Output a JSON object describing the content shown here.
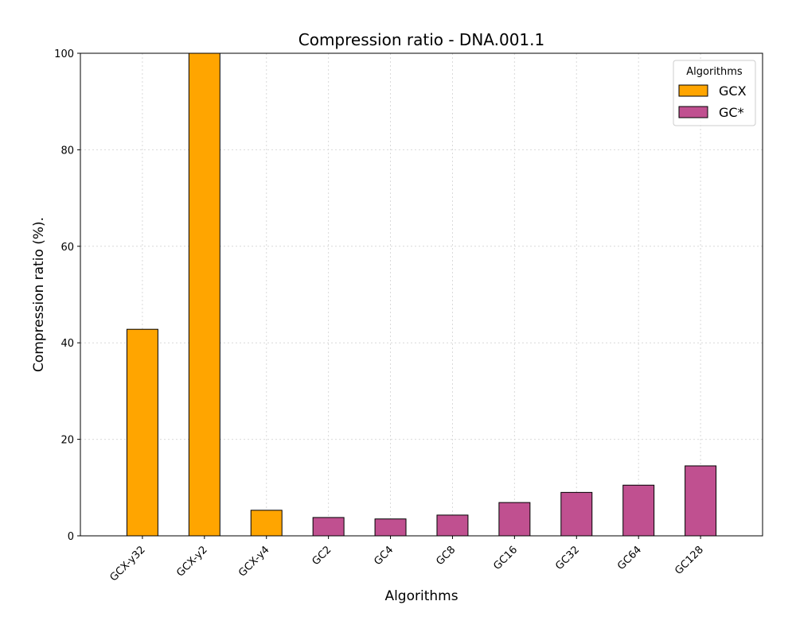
{
  "chart_data": {
    "type": "bar",
    "title": "Compression ratio -  DNA.001.1",
    "xlabel": "Algorithms",
    "ylabel": "Compression ratio (%).",
    "ylim": [
      0,
      100
    ],
    "yticks": [
      0,
      20,
      40,
      60,
      80,
      100
    ],
    "grid": true,
    "legend": {
      "title": "Algorithms",
      "placement": "top-right",
      "entries": [
        {
          "name": "GCX",
          "color": "#FFA500"
        },
        {
          "name": "GC*",
          "color": "#C05090"
        }
      ]
    },
    "categories": [
      "GCX-y32",
      "GCX-y2",
      "GCX-y4",
      "GC2",
      "GC4",
      "GC8",
      "GC16",
      "GC32",
      "GC64",
      "GC128"
    ],
    "values": [
      42.8,
      100,
      5.3,
      3.8,
      3.5,
      4.3,
      6.9,
      9.0,
      10.5,
      14.5
    ],
    "groups": [
      "GCX",
      "GCX",
      "GCX",
      "GC*",
      "GC*",
      "GC*",
      "GC*",
      "GC*",
      "GC*",
      "GC*"
    ]
  }
}
